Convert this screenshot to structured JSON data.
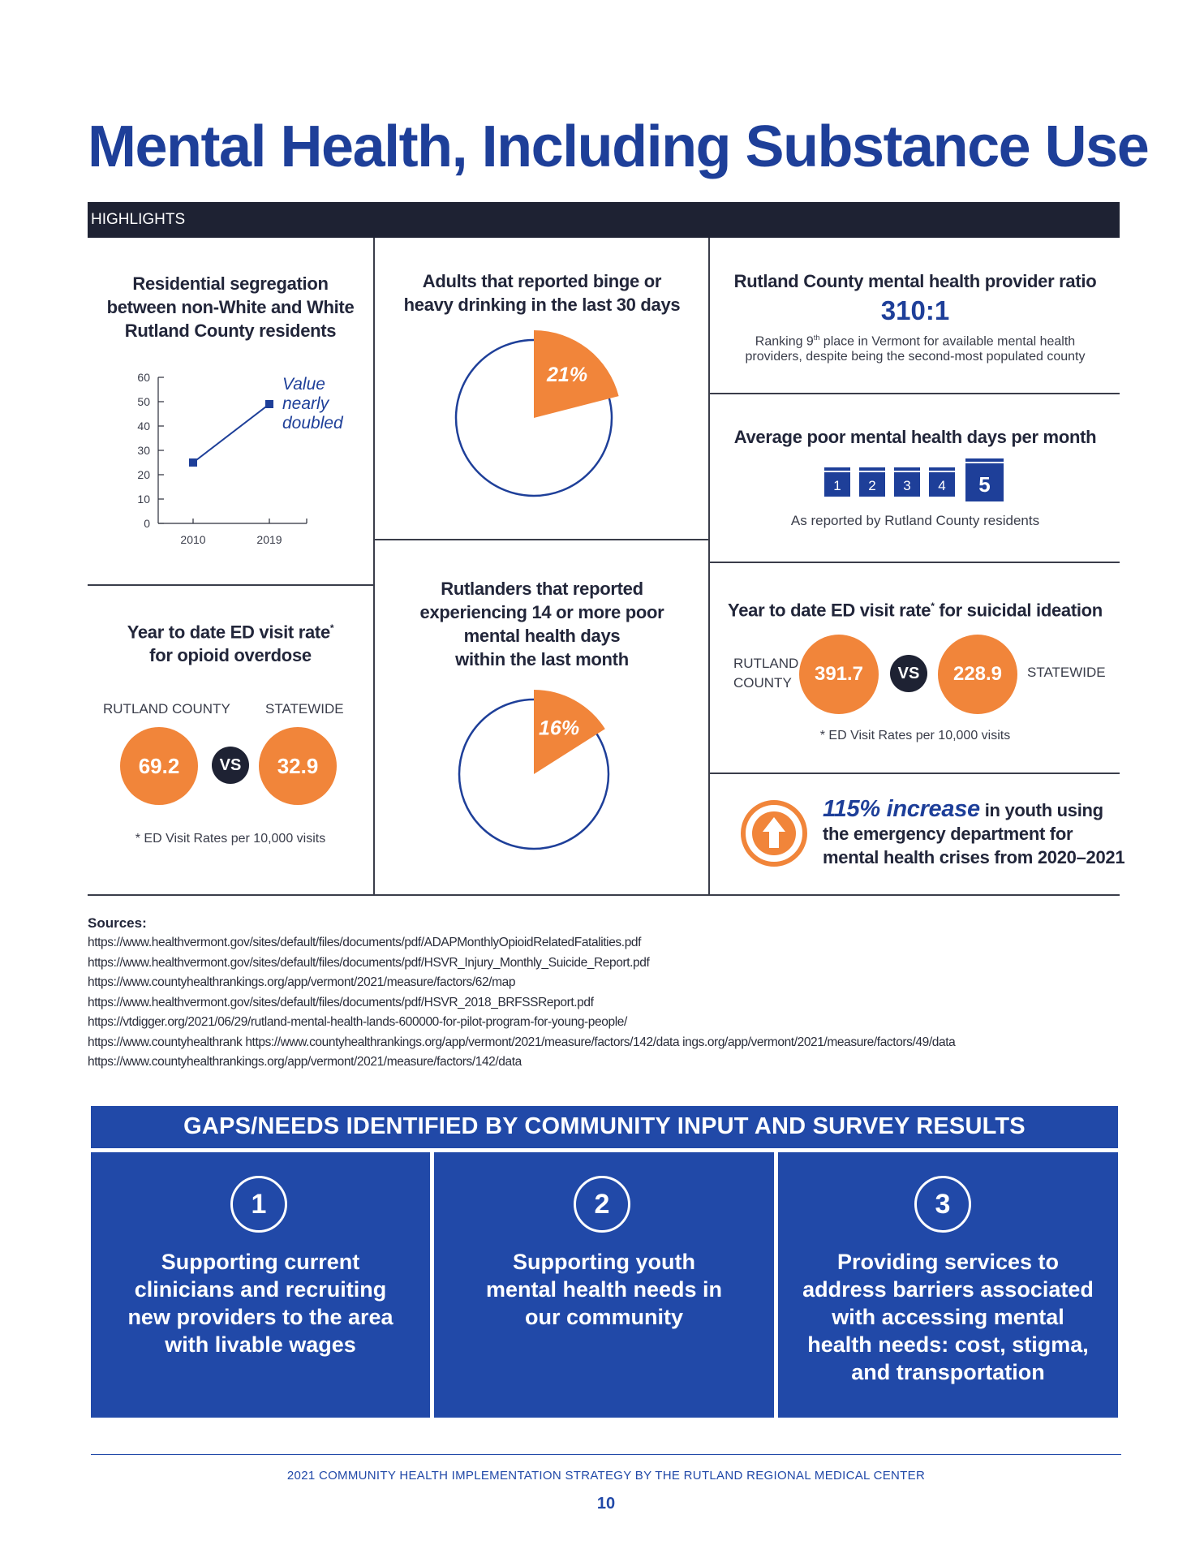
{
  "title": "Mental Health, Including Substance Use",
  "highlights_label": "HIGHLIGHTS",
  "segregation": {
    "title_lines": [
      "Residential segregation",
      "between non-White and White",
      "Rutland County residents"
    ],
    "annotation_lines": [
      "Value",
      "nearly",
      "doubled"
    ],
    "chart_data": {
      "type": "line",
      "x": [
        "2010",
        "2019"
      ],
      "series": [
        {
          "values": [
            25,
            49
          ]
        }
      ],
      "ylim": [
        0,
        60
      ],
      "yticks": [
        "0",
        "10",
        "20",
        "30",
        "40",
        "50",
        "60"
      ],
      "color": "#1e3f99"
    }
  },
  "binge": {
    "title_lines": [
      "Adults that reported binge or",
      "heavy drinking in the last 30 days"
    ],
    "chart_data": {
      "type": "pie",
      "values": [
        21
      ],
      "labels": [
        "21%"
      ],
      "accent": "#f1853a",
      "outline": "#1e3f99"
    }
  },
  "provider_ratio": {
    "title": "Rutland County mental health provider ratio",
    "ratio": "310:1",
    "note_pre": "Ranking 9",
    "note_sup": "th",
    "note_post": " place in Vermont for available mental health",
    "note_line2": "providers, despite being the second-most populated county"
  },
  "poor_days": {
    "title": "Average poor mental health days per month",
    "days": [
      "1",
      "2",
      "3",
      "4",
      "5"
    ],
    "note": "As reported by Rutland County residents"
  },
  "opioid": {
    "title_line1": "Year to date ED visit rate",
    "title_star": "*",
    "title_line2": "for opioid overdose",
    "rutland_label": "RUTLAND COUNTY",
    "statewide_label": "STATEWIDE",
    "rutland_value": "69.2",
    "statewide_value": "32.9",
    "vs": "VS",
    "footnote": "* ED Visit Rates per 10,000 visits"
  },
  "poor14": {
    "title_lines": [
      "Rutlanders that reported",
      "experiencing 14 or more poor",
      "mental health days",
      "within the last month"
    ],
    "chart_data": {
      "type": "pie",
      "values": [
        16
      ],
      "labels": [
        "16%"
      ],
      "accent": "#f1853a",
      "outline": "#1e3f99"
    }
  },
  "suicidal": {
    "title_pre": "Year to date ED visit rate",
    "title_star": "*",
    "title_post": " for suicidal ideation",
    "rutland_label_1": "RUTLAND",
    "rutland_label_2": "COUNTY",
    "rutland_value": "391.7",
    "vs": "VS",
    "statewide_value": "228.9",
    "statewide_label": "STATEWIDE",
    "footnote": "* ED Visit Rates per 10,000 visits"
  },
  "youth": {
    "highlight": "115% increase",
    "line1_rest": " in youth using",
    "line2": "the emergency department for",
    "line3": "mental health crises from 2020–2021"
  },
  "sources": {
    "label": "Sources:",
    "links": [
      "https://www.healthvermont.gov/sites/default/files/documents/pdf/ADAPMonthlyOpioidRelatedFatalities.pdf",
      "https://www.healthvermont.gov/sites/default/files/documents/pdf/HSVR_Injury_Monthly_Suicide_Report.pdf",
      "https://www.countyhealthrankings.org/app/vermont/2021/measure/factors/62/map",
      "https://www.healthvermont.gov/sites/default/files/documents/pdf/HSVR_2018_BRFSSReport.pdf",
      "https://vtdigger.org/2021/06/29/rutland-mental-health-lands-600000-for-pilot-program-for-young-people/",
      "https://www.countyhealthrank https://www.countyhealthrankings.org/app/vermont/2021/measure/factors/142/data ings.org/app/vermont/2021/measure/factors/49/data",
      "https://www.countyhealthrankings.org/app/vermont/2021/measure/factors/142/data"
    ]
  },
  "gaps": {
    "header": "GAPS/NEEDS IDENTIFIED BY COMMUNITY INPUT AND SURVEY RESULTS",
    "items": [
      {
        "num": "1",
        "lines": [
          "Supporting current",
          "clinicians and recruiting",
          "new providers to the area",
          "with livable wages"
        ]
      },
      {
        "num": "2",
        "lines": [
          "Supporting youth",
          "mental health needs in",
          "our community"
        ]
      },
      {
        "num": "3",
        "lines": [
          "Providing services to",
          "address barriers associated",
          "with accessing mental",
          "health needs: cost, stigma,",
          "and transportation"
        ]
      }
    ]
  },
  "footer": {
    "text": "2021 COMMUNITY HEALTH IMPLEMENTATION STRATEGY BY THE RUTLAND REGIONAL MEDICAL CENTER",
    "page": "10"
  }
}
